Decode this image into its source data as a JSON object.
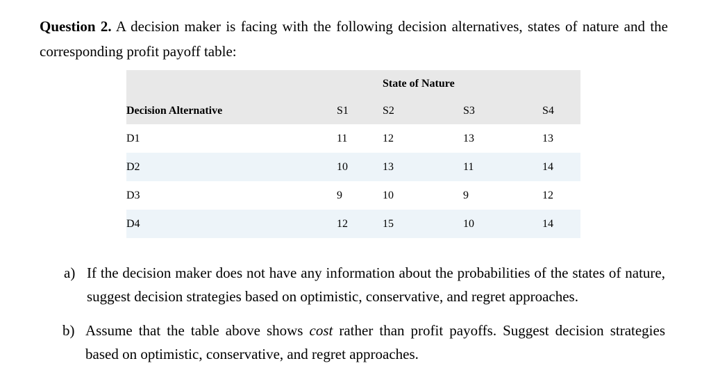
{
  "page": {
    "background": "#ffffff",
    "text_color": "#000000"
  },
  "intro": {
    "label": "Question 2.",
    "text": " A decision maker is facing with the following decision alternatives, states of nature and the corresponding profit payoff table:"
  },
  "table": {
    "header_group_label": "State of Nature",
    "row_header": "Decision Alternative",
    "columns": [
      "S1",
      "S2",
      "S3",
      "S4"
    ],
    "rows": [
      {
        "label": "D1",
        "values": [
          11,
          12,
          13,
          13
        ]
      },
      {
        "label": "D2",
        "values": [
          10,
          13,
          11,
          14
        ]
      },
      {
        "label": "D3",
        "values": [
          9,
          10,
          9,
          12
        ]
      },
      {
        "label": "D4",
        "values": [
          12,
          15,
          10,
          14
        ]
      }
    ],
    "colors": {
      "header_bg": "#e8e8e8",
      "alt_row_bg": "#edf4f9"
    }
  },
  "items": {
    "a": {
      "marker": "a)",
      "text": "If the decision maker does not have any information about the probabilities of the states of nature, suggest decision strategies based on optimistic, conservative, and regret approaches."
    },
    "b": {
      "marker": "b)",
      "text_before": "Assume that the table above shows ",
      "italic_word": "cost",
      "text_after": " rather than profit payoffs. Suggest decision strategies based on optimistic, conservative, and regret approaches."
    }
  }
}
